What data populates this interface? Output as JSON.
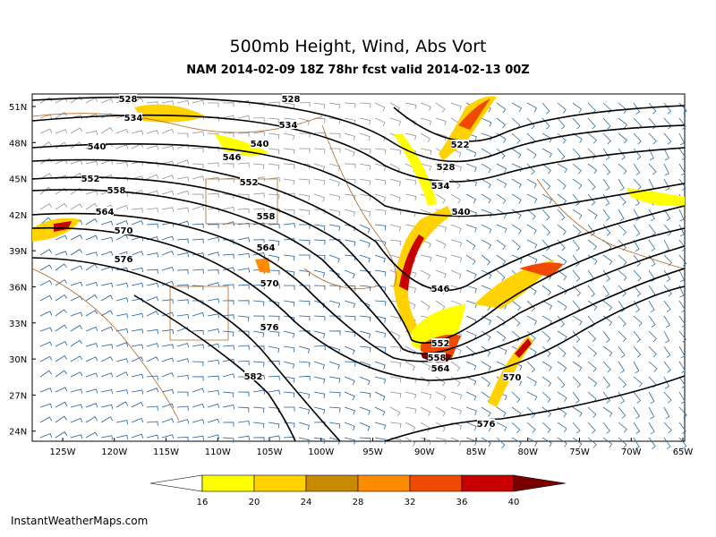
{
  "header": {
    "title": "500mb Height, Wind, Abs Vort",
    "subtitle": "NAM 2014-02-09 18Z 78hr fcst valid 2014-02-13 00Z"
  },
  "map": {
    "lat_labels": [
      "51N",
      "48N",
      "45N",
      "42N",
      "39N",
      "36N",
      "33N",
      "30N",
      "27N",
      "24N"
    ],
    "lon_labels": [
      "125W",
      "120W",
      "115W",
      "110W",
      "105W",
      "100W",
      "95W",
      "90W",
      "85W",
      "80W",
      "75W",
      "70W",
      "65W"
    ],
    "contour_labels": [
      "528",
      "528",
      "534",
      "534",
      "540",
      "540",
      "546",
      "552",
      "552",
      "558",
      "558",
      "564",
      "564",
      "570",
      "570",
      "576",
      "576",
      "582",
      "522",
      "528",
      "534",
      "540",
      "546",
      "552",
      "558",
      "564",
      "570",
      "576"
    ]
  },
  "colorbar": {
    "labels": [
      16,
      20,
      24,
      28,
      32,
      36,
      40
    ],
    "colors": [
      "#ffffff",
      "#ffff00",
      "#ffd200",
      "#c88a00",
      "#ff8c00",
      "#f04a00",
      "#c80000",
      "#7a0000"
    ]
  },
  "footer": "InstantWeatherMaps.com"
}
